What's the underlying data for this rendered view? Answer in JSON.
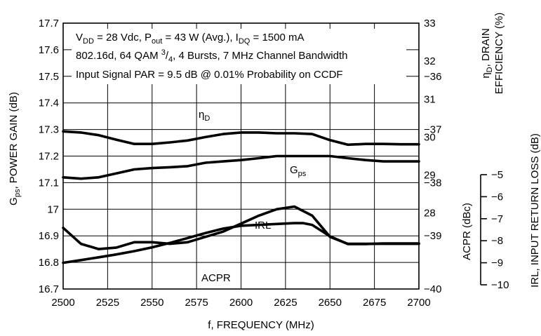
{
  "chart_data": {
    "type": "line",
    "notes": {
      "line1": "V_DD = 28 Vdc, P_out = 43 W (Avg.), I_DQ = 1500 mA",
      "line2": "802.16d, 64 QAM 3/4, 4 Bursts, 7 MHz Channel Bandwidth",
      "line3": "Input Signal PAR = 9.5 dB @ 0.01% Probability on CCDF"
    },
    "x_axis": {
      "label": "f, FREQUENCY (MHz)",
      "range": [
        2500,
        2700
      ],
      "ticks": [
        "2500",
        "2525",
        "2550",
        "2575",
        "2600",
        "2625",
        "2650",
        "2675",
        "2700"
      ]
    },
    "y_axis_left": {
      "label": "G_ps, POWER GAIN (dB)",
      "range": [
        16.7,
        17.7
      ],
      "ticks": [
        "17.7",
        "17.6",
        "17.5",
        "17.4",
        "17.3",
        "17.2",
        "17.1",
        "17",
        "16.9",
        "16.8",
        "16.7"
      ]
    },
    "y_axis_right_efficiency": {
      "label": "η_D, DRAIN EFFICIENCY (%)",
      "range": [
        26,
        33
      ],
      "ticks": [
        "33",
        "32",
        "31",
        "30",
        "29",
        "28"
      ]
    },
    "y_axis_right_acpr": {
      "label": "ACPR (dBc)",
      "range": [
        -40,
        -35
      ],
      "ticks": [
        "-36",
        "-37",
        "-38",
        "-39",
        "-40"
      ]
    },
    "y_axis_right_irl": {
      "label": "IRL, INPUT RETURN LOSS (dB)",
      "range": [
        -10,
        -5
      ],
      "ticks": [
        "-5",
        "-6",
        "-7",
        "-8",
        "-9",
        "-10"
      ]
    },
    "series": [
      {
        "name": "ηD",
        "axis": "efficiency",
        "x": [
          2500,
          2510,
          2520,
          2530,
          2540,
          2550,
          2560,
          2570,
          2580,
          2590,
          2600,
          2610,
          2620,
          2630,
          2640,
          2650,
          2660,
          2670,
          2680,
          2690,
          2700
        ],
        "y": [
          30.15,
          30.12,
          30.05,
          29.93,
          29.82,
          29.82,
          29.86,
          29.91,
          30.0,
          30.08,
          30.12,
          30.12,
          30.1,
          30.1,
          30.08,
          29.92,
          29.8,
          29.82,
          29.82,
          29.81,
          29.81
        ]
      },
      {
        "name": "Gps",
        "axis": "gain",
        "x": [
          2500,
          2510,
          2520,
          2530,
          2540,
          2550,
          2560,
          2570,
          2580,
          2590,
          2600,
          2610,
          2620,
          2630,
          2640,
          2650,
          2660,
          2670,
          2680,
          2690,
          2700
        ],
        "y": [
          17.12,
          17.115,
          17.12,
          17.135,
          17.15,
          17.155,
          17.158,
          17.162,
          17.175,
          17.18,
          17.185,
          17.192,
          17.2,
          17.2,
          17.2,
          17.2,
          17.192,
          17.185,
          17.18,
          17.18,
          17.18
        ]
      },
      {
        "name": "IRL",
        "axis": "irl",
        "x": [
          2500,
          2510,
          2520,
          2530,
          2540,
          2550,
          2560,
          2570,
          2580,
          2590,
          2600,
          2610,
          2620,
          2630,
          2635,
          2640,
          2650,
          2660,
          2670,
          2680,
          2690,
          2700
        ],
        "y": [
          -9.0,
          -8.88,
          -8.75,
          -8.62,
          -8.47,
          -8.3,
          -8.1,
          -7.88,
          -7.65,
          -7.45,
          -7.32,
          -7.28,
          -7.24,
          -7.2,
          -7.2,
          -7.28,
          -7.8,
          -8.15,
          -8.15,
          -8.12,
          -8.12,
          -8.12
        ]
      },
      {
        "name": "ACPR",
        "axis": "acpr",
        "x": [
          2500,
          2510,
          2520,
          2530,
          2540,
          2550,
          2560,
          2570,
          2580,
          2590,
          2600,
          2610,
          2620,
          2630,
          2640,
          2650,
          2660,
          2670,
          2680,
          2690,
          2700
        ],
        "y": [
          -38.85,
          -39.15,
          -39.25,
          -39.22,
          -39.12,
          -39.12,
          -39.15,
          -39.12,
          -39.02,
          -38.92,
          -38.77,
          -38.62,
          -38.5,
          -38.45,
          -38.62,
          -39.02,
          -39.15,
          -39.15,
          -39.15,
          -39.15,
          -39.15
        ]
      }
    ],
    "grid": true
  }
}
